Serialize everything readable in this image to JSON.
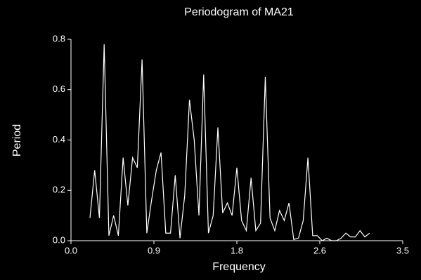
{
  "chart_data": {
    "type": "line",
    "title": "Periodogram of MA21",
    "x_label": "Frequency",
    "y_label": "Period",
    "x": [
      0.2,
      0.25,
      0.3,
      0.35,
      0.4,
      0.45,
      0.5,
      0.55,
      0.6,
      0.65,
      0.7,
      0.75,
      0.8,
      0.85,
      0.9,
      0.95,
      1.0,
      1.05,
      1.1,
      1.15,
      1.2,
      1.25,
      1.3,
      1.35,
      1.4,
      1.45,
      1.5,
      1.55,
      1.6,
      1.65,
      1.7,
      1.75,
      1.8,
      1.85,
      1.9,
      1.95,
      2.0,
      2.05,
      2.1,
      2.15,
      2.2,
      2.25,
      2.3,
      2.35,
      2.4,
      2.45,
      2.5,
      2.55,
      2.6,
      2.65,
      2.7,
      2.75,
      2.8,
      2.85,
      2.9,
      2.95,
      3.0,
      3.05,
      3.1,
      3.15
    ],
    "series": [
      {
        "name": "MA21",
        "color": "#ffffff",
        "values": [
          0.09,
          0.28,
          0.09,
          0.78,
          0.02,
          0.1,
          0.02,
          0.33,
          0.14,
          0.33,
          0.29,
          0.72,
          0.03,
          0.16,
          0.28,
          0.35,
          0.03,
          0.03,
          0.26,
          0.01,
          0.18,
          0.56,
          0.4,
          0.1,
          0.66,
          0.03,
          0.1,
          0.45,
          0.11,
          0.15,
          0.1,
          0.29,
          0.08,
          0.04,
          0.25,
          0.04,
          0.07,
          0.65,
          0.09,
          0.04,
          0.12,
          0.08,
          0.15,
          0.005,
          0.01,
          0.08,
          0.33,
          0.02,
          0.02,
          0.0,
          0.01,
          0.0,
          0.0,
          0.01,
          0.03,
          0.015,
          0.015,
          0.04,
          0.015,
          0.03
        ]
      }
    ],
    "xlim": [
      0,
      3.5
    ],
    "xticks": [
      {
        "value": 0,
        "label": "0.0"
      },
      {
        "value": 0.875,
        "label": "0.9"
      },
      {
        "value": 1.75,
        "label": "1.8"
      },
      {
        "value": 2.625,
        "label": "2.6"
      },
      {
        "value": 3.5,
        "label": "3.5"
      }
    ],
    "ylim": [
      0,
      0.8
    ],
    "yticks": [
      {
        "value": 0,
        "label": "0.0"
      },
      0.2,
      0.4,
      0.6,
      0.8
    ],
    "grid": false
  }
}
